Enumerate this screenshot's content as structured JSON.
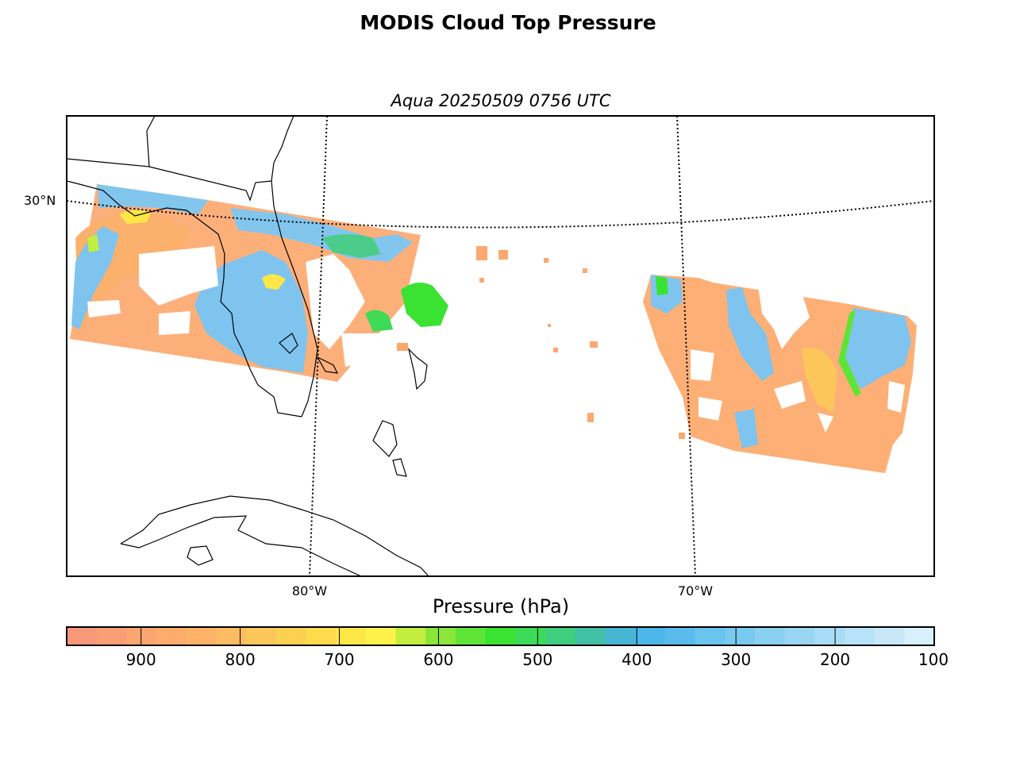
{
  "title": "MODIS Cloud Top Pressure",
  "subtitle": "Aqua 20250509 0756 UTC",
  "graticule": {
    "lat_labels": [
      "30°N"
    ],
    "lon_labels": [
      "80°W",
      "70°W"
    ]
  },
  "colorbar": {
    "label": "Pressure (hPa)",
    "ticks": [
      "900",
      "800",
      "700",
      "600",
      "500",
      "400",
      "300",
      "200",
      "100"
    ],
    "range": [
      975,
      100
    ],
    "colors": [
      "#f9977b",
      "#fa9e76",
      "#fba571",
      "#fdac6c",
      "#feb368",
      "#fdbb62",
      "#fcc65a",
      "#fcd152",
      "#fddb4c",
      "#fde746",
      "#fbf24a",
      "#c2ef3f",
      "#8be63a",
      "#5ee436",
      "#3ae232",
      "#3cdb57",
      "#3fcf7e",
      "#43c1a6",
      "#47b6d3",
      "#4db6eb",
      "#59bcec",
      "#69c4ee",
      "#79caef",
      "#89d0f1",
      "#9ad6f4",
      "#a9dcf6",
      "#b8e2f8",
      "#c8e8fa",
      "#d8f0fc"
    ]
  },
  "colors": {
    "low_cloud": "#f9977b",
    "mid_low_cloud": "#fdac6c",
    "mid_cloud": "#fde746",
    "mid_high_cloud": "#3ae232",
    "high_cloud": "#7ec4ee",
    "coastline": "#000000",
    "frame": "#000000"
  }
}
